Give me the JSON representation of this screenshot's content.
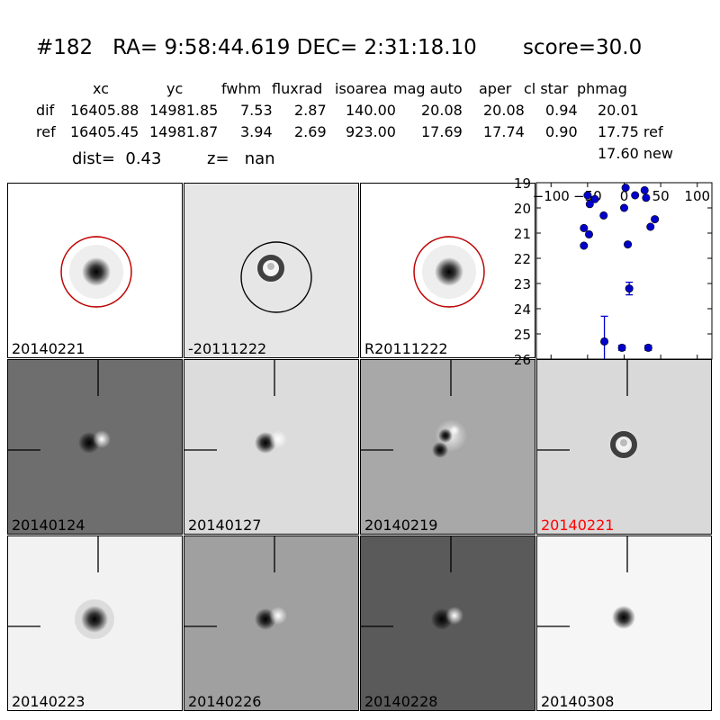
{
  "header": {
    "title": "#182   RA= 9:58:44.619 DEC= 2:31:18.10       score=30.0"
  },
  "table": {
    "columns": [
      "xc",
      "yc",
      "fwhm",
      "fluxrad",
      "isoarea",
      "mag auto",
      "aper",
      "cl star",
      "phmag"
    ],
    "rows": [
      {
        "label": "dif",
        "values": [
          "16405.88",
          "14981.85",
          "7.53",
          "2.87",
          "140.00",
          "20.08",
          "20.08",
          "0.94",
          "20.01"
        ]
      },
      {
        "label": "ref",
        "values": [
          "16405.45",
          "14981.87",
          "3.94",
          "2.69",
          "923.00",
          "17.69",
          "17.74",
          "0.90",
          "17.75 ref"
        ]
      }
    ],
    "extra_phmag": "17.60 new"
  },
  "summary": {
    "dist": "dist=  0.43",
    "z": "z=   nan"
  },
  "colors": {
    "circle_red": "#cc0000",
    "circle_black": "#000000",
    "highlight_label": "#ff0000",
    "point": "#0000cc"
  },
  "panels": [
    {
      "label": "20140221",
      "bg": "#ffffff",
      "type": "star",
      "circle": "red"
    },
    {
      "label": "-20111222",
      "bg": "#e6e6e6",
      "type": "ring",
      "circle": "black"
    },
    {
      "label": "R20111222",
      "bg": "#ffffff",
      "type": "star",
      "circle": "red"
    },
    {
      "label": "20140124",
      "bg": "#6e6e6e",
      "type": "dipole",
      "crosshair": true
    },
    {
      "label": "20140127",
      "bg": "#dcdcdc",
      "type": "dipole",
      "crosshair": true
    },
    {
      "label": "20140219",
      "bg": "#a8a8a8",
      "type": "double",
      "crosshair": true
    },
    {
      "label": "20140221",
      "bg": "#d9d9d9",
      "type": "ring",
      "crosshair": true,
      "highlight": true
    },
    {
      "label": "20140223",
      "bg": "#f2f2f2",
      "type": "blob",
      "crosshair": true
    },
    {
      "label": "20140226",
      "bg": "#a0a0a0",
      "type": "dipole",
      "crosshair": true
    },
    {
      "label": "20140228",
      "bg": "#5a5a5a",
      "type": "dipole",
      "crosshair": true
    },
    {
      "label": "20140308",
      "bg": "#f6f6f6",
      "type": "star_small",
      "crosshair": true
    }
  ],
  "chart_data": {
    "type": "scatter",
    "xlim": [
      -120,
      120
    ],
    "ylim": [
      26,
      19
    ],
    "y_inverted": true,
    "xticks": [
      -100,
      -50,
      0,
      50,
      100
    ],
    "xtick_labels": [
      "−100",
      "−50",
      "0",
      "50",
      "100"
    ],
    "yticks": [
      19,
      20,
      21,
      22,
      23,
      24,
      25,
      26
    ],
    "ytick_labels": [
      "19",
      "20",
      "21",
      "22",
      "23",
      "24",
      "25",
      "26"
    ],
    "points": [
      {
        "x": -50,
        "y": 19.5
      },
      {
        "x": -47,
        "y": 19.85
      },
      {
        "x": -40,
        "y": 19.65
      },
      {
        "x": -55,
        "y": 20.8
      },
      {
        "x": -48,
        "y": 21.05
      },
      {
        "x": -55,
        "y": 21.5
      },
      {
        "x": -28,
        "y": 20.3
      },
      {
        "x": 2,
        "y": 19.2
      },
      {
        "x": 15,
        "y": 19.5
      },
      {
        "x": 28,
        "y": 19.3
      },
      {
        "x": 30,
        "y": 19.6
      },
      {
        "x": 0,
        "y": 20.0
      },
      {
        "x": 42,
        "y": 20.45
      },
      {
        "x": 36,
        "y": 20.75
      },
      {
        "x": 5,
        "y": 21.45
      },
      {
        "x": 7,
        "y": 23.2,
        "err": 0.25
      },
      {
        "x": -27,
        "y": 25.3,
        "err": 1.0
      },
      {
        "x": -3,
        "y": 25.55,
        "err": 0.1
      },
      {
        "x": 33,
        "y": 25.55,
        "err": 0.1
      }
    ]
  }
}
